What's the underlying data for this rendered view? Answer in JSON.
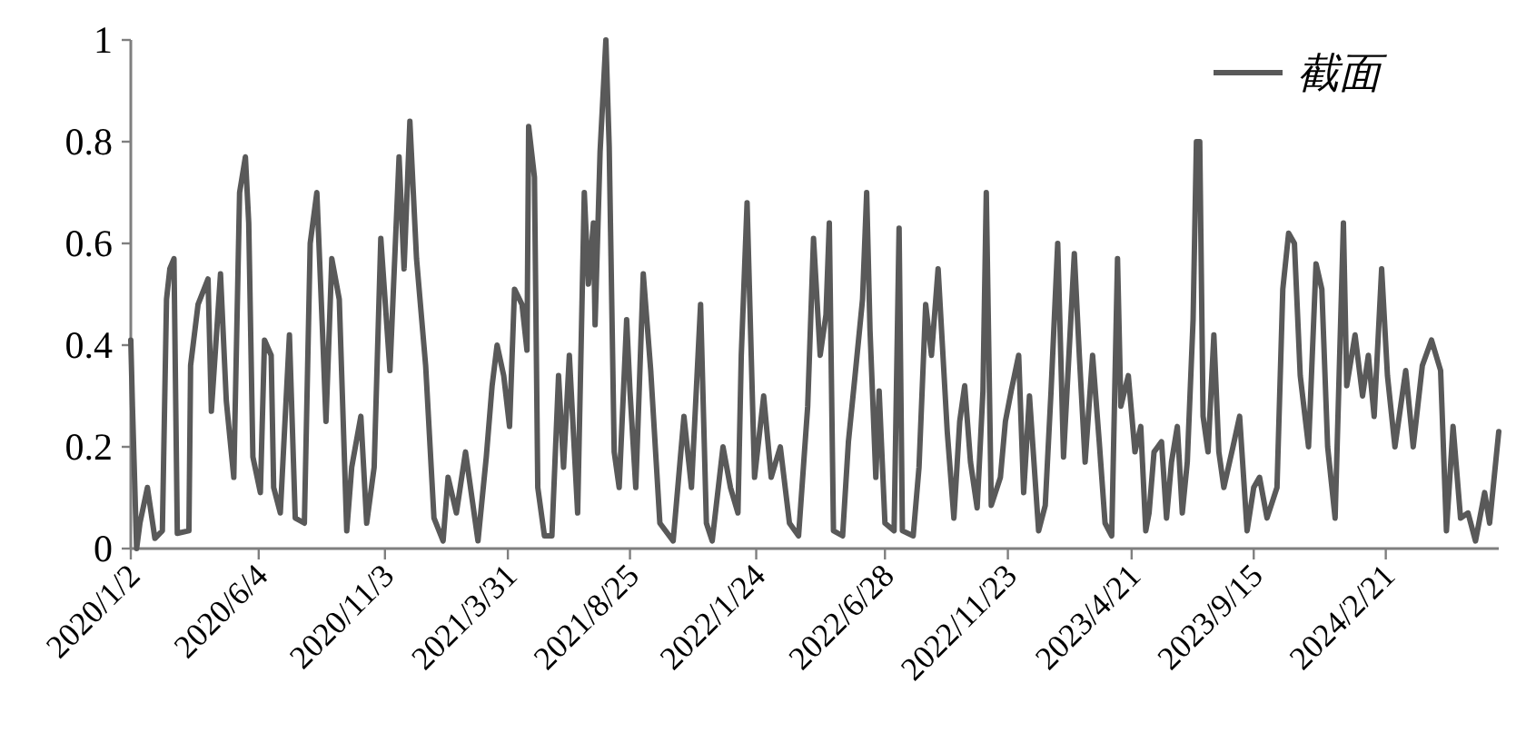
{
  "chart_data": {
    "type": "line",
    "legend": "top right",
    "xlim": [
      "2020-01-02",
      "2024-07-06"
    ],
    "xticks": [
      {
        "value": "2020-01-02",
        "label": "2020/1/2"
      },
      {
        "value": "2020-06-04",
        "label": "2020/6/4"
      },
      {
        "value": "2020-11-03",
        "label": "2020/11/3"
      },
      {
        "value": "2021-03-31",
        "label": "2021/3/31"
      },
      {
        "value": "2021-08-25",
        "label": "2021/8/25"
      },
      {
        "value": "2022-01-24",
        "label": "2022/1/24"
      },
      {
        "value": "2022-06-28",
        "label": "2022/6/28"
      },
      {
        "value": "2022-11-23",
        "label": "2022/11/23"
      },
      {
        "value": "2023-04-21",
        "label": "2023/4/21"
      },
      {
        "value": "2023-09-15",
        "label": "2023/9/15"
      },
      {
        "value": "2024-02-21",
        "label": "2024/2/21"
      }
    ],
    "ylim": [
      0,
      1
    ],
    "yticks": [
      0,
      0.2,
      0.4,
      0.6,
      0.8,
      1
    ],
    "x": [
      "2020-01-02",
      "2020-01-04",
      "2020-01-09",
      "2020-01-13",
      "2020-01-22",
      "2020-01-31",
      "2020-02-09",
      "2020-02-14",
      "2020-02-18",
      "2020-02-23",
      "2020-02-27",
      "2020-03-12",
      "2020-03-14",
      "2020-03-23",
      "2020-04-04",
      "2020-04-08",
      "2020-04-19",
      "2020-04-26",
      "2020-05-05",
      "2020-05-12",
      "2020-05-19",
      "2020-05-23",
      "2020-05-28",
      "2020-06-06",
      "2020-06-11",
      "2020-06-19",
      "2020-06-22",
      "2020-06-30",
      "2020-07-11",
      "2020-07-18",
      "2020-07-29",
      "2020-08-05",
      "2020-08-13",
      "2020-08-20",
      "2020-08-24",
      "2020-08-31",
      "2020-09-09",
      "2020-09-18",
      "2020-09-24",
      "2020-10-05",
      "2020-10-12",
      "2020-10-21",
      "2020-10-29",
      "2020-11-09",
      "2020-11-20",
      "2020-11-26",
      "2020-12-03",
      "2020-12-11",
      "2020-12-22",
      "2021-01-01",
      "2021-01-12",
      "2021-01-18",
      "2021-01-28",
      "2021-02-08",
      "2021-02-23",
      "2021-03-05",
      "2021-03-12",
      "2021-03-18",
      "2021-03-26",
      "2021-04-02",
      "2021-04-08",
      "2021-04-17",
      "2021-04-23",
      "2021-04-25",
      "2021-05-02",
      "2021-05-06",
      "2021-05-14",
      "2021-05-23",
      "2021-05-31",
      "2021-06-06",
      "2021-06-13",
      "2021-06-23",
      "2021-07-01",
      "2021-07-06",
      "2021-07-12",
      "2021-07-14",
      "2021-07-20",
      "2021-07-27",
      "2021-07-31",
      "2021-08-06",
      "2021-08-12",
      "2021-08-21",
      "2021-08-25",
      "2021-09-01",
      "2021-09-10",
      "2021-09-19",
      "2021-09-30",
      "2021-10-16",
      "2021-10-29",
      "2021-11-07",
      "2021-11-18",
      "2021-11-25",
      "2021-12-02",
      "2021-12-15",
      "2021-12-24",
      "2022-01-02",
      "2022-01-06",
      "2022-01-13",
      "2022-01-22",
      "2022-02-02",
      "2022-02-11",
      "2022-02-22",
      "2022-03-05",
      "2022-03-16",
      "2022-03-27",
      "2022-04-03",
      "2022-04-11",
      "2022-04-18",
      "2022-04-22",
      "2022-04-27",
      "2022-05-08",
      "2022-05-15",
      "2022-05-23",
      "2022-06-01",
      "2022-06-06",
      "2022-06-10",
      "2022-06-17",
      "2022-06-21",
      "2022-06-28",
      "2022-07-09",
      "2022-07-15",
      "2022-07-19",
      "2022-08-01",
      "2022-08-08",
      "2022-08-16",
      "2022-08-23",
      "2022-08-31",
      "2022-09-11",
      "2022-09-19",
      "2022-09-26",
      "2022-10-02",
      "2022-10-09",
      "2022-10-17",
      "2022-10-24",
      "2022-10-28",
      "2022-11-03",
      "2022-11-14",
      "2022-11-20",
      "2022-11-27",
      "2022-12-06",
      "2022-12-12",
      "2022-12-19",
      "2022-12-30",
      "2023-01-07",
      "2023-01-14",
      "2023-01-22",
      "2023-01-29",
      "2023-02-11",
      "2023-02-17",
      "2023-02-24",
      "2023-03-05",
      "2023-03-13",
      "2023-03-20",
      "2023-03-28",
      "2023-04-04",
      "2023-04-08",
      "2023-04-17",
      "2023-04-25",
      "2023-05-02",
      "2023-05-08",
      "2023-05-12",
      "2023-05-18",
      "2023-05-27",
      "2023-06-02",
      "2023-06-08",
      "2023-06-15",
      "2023-06-21",
      "2023-06-27",
      "2023-07-04",
      "2023-07-08",
      "2023-07-12",
      "2023-07-16",
      "2023-07-22",
      "2023-07-29",
      "2023-08-04",
      "2023-08-10",
      "2023-08-21",
      "2023-08-29",
      "2023-09-07",
      "2023-09-15",
      "2023-09-22",
      "2023-10-01",
      "2023-10-13",
      "2023-10-20",
      "2023-10-27",
      "2023-11-03",
      "2023-11-10",
      "2023-11-20",
      "2023-11-29",
      "2023-12-06",
      "2023-12-13",
      "2023-12-22",
      "2024-01-01",
      "2024-01-05",
      "2024-01-15",
      "2024-01-24",
      "2024-01-31",
      "2024-02-07",
      "2024-02-16",
      "2024-02-23",
      "2024-03-03",
      "2024-03-16",
      "2024-03-25",
      "2024-04-05",
      "2024-04-16",
      "2024-04-27",
      "2024-05-04",
      "2024-05-12",
      "2024-05-21",
      "2024-05-30",
      "2024-06-08",
      "2024-06-19",
      "2024-06-25",
      "2024-07-06"
    ],
    "series": [
      {
        "name": "截面",
        "color": "#595959",
        "values": [
          0.41,
          0.28,
          0.0,
          0.05,
          0.12,
          0.02,
          0.035,
          0.49,
          0.55,
          0.57,
          0.03,
          0.035,
          0.36,
          0.48,
          0.53,
          0.27,
          0.54,
          0.29,
          0.14,
          0.7,
          0.77,
          0.64,
          0.18,
          0.11,
          0.41,
          0.38,
          0.12,
          0.07,
          0.42,
          0.06,
          0.05,
          0.6,
          0.7,
          0.42,
          0.25,
          0.57,
          0.49,
          0.035,
          0.16,
          0.26,
          0.05,
          0.16,
          0.61,
          0.35,
          0.77,
          0.55,
          0.84,
          0.57,
          0.36,
          0.06,
          0.015,
          0.14,
          0.07,
          0.19,
          0.015,
          0.18,
          0.32,
          0.4,
          0.34,
          0.24,
          0.51,
          0.48,
          0.39,
          0.83,
          0.73,
          0.12,
          0.025,
          0.025,
          0.34,
          0.16,
          0.38,
          0.07,
          0.7,
          0.52,
          0.64,
          0.44,
          0.78,
          1.0,
          0.79,
          0.19,
          0.12,
          0.45,
          0.31,
          0.12,
          0.54,
          0.35,
          0.05,
          0.015,
          0.26,
          0.12,
          0.48,
          0.05,
          0.015,
          0.2,
          0.12,
          0.07,
          0.38,
          0.68,
          0.14,
          0.3,
          0.14,
          0.2,
          0.05,
          0.025,
          0.28,
          0.61,
          0.38,
          0.46,
          0.64,
          0.035,
          0.025,
          0.21,
          0.34,
          0.49,
          0.7,
          0.43,
          0.14,
          0.31,
          0.05,
          0.035,
          0.63,
          0.035,
          0.025,
          0.16,
          0.48,
          0.38,
          0.55,
          0.23,
          0.06,
          0.25,
          0.32,
          0.17,
          0.08,
          0.31,
          0.7,
          0.085,
          0.14,
          0.25,
          0.31,
          0.38,
          0.11,
          0.3,
          0.035,
          0.085,
          0.31,
          0.6,
          0.18,
          0.58,
          0.38,
          0.17,
          0.38,
          0.21,
          0.05,
          0.025,
          0.57,
          0.28,
          0.34,
          0.19,
          0.24,
          0.035,
          0.07,
          0.19,
          0.21,
          0.06,
          0.17,
          0.24,
          0.07,
          0.17,
          0.45,
          0.8,
          0.8,
          0.26,
          0.19,
          0.42,
          0.19,
          0.12,
          0.2,
          0.26,
          0.035,
          0.12,
          0.14,
          0.06,
          0.12,
          0.51,
          0.62,
          0.6,
          0.34,
          0.2,
          0.56,
          0.51,
          0.2,
          0.06,
          0.64,
          0.32,
          0.42,
          0.3,
          0.38,
          0.26,
          0.55,
          0.34,
          0.2,
          0.35,
          0.2,
          0.36,
          0.41,
          0.35,
          0.035,
          0.24,
          0.06,
          0.07,
          0.015,
          0.11,
          0.05,
          0.23
        ]
      }
    ]
  }
}
